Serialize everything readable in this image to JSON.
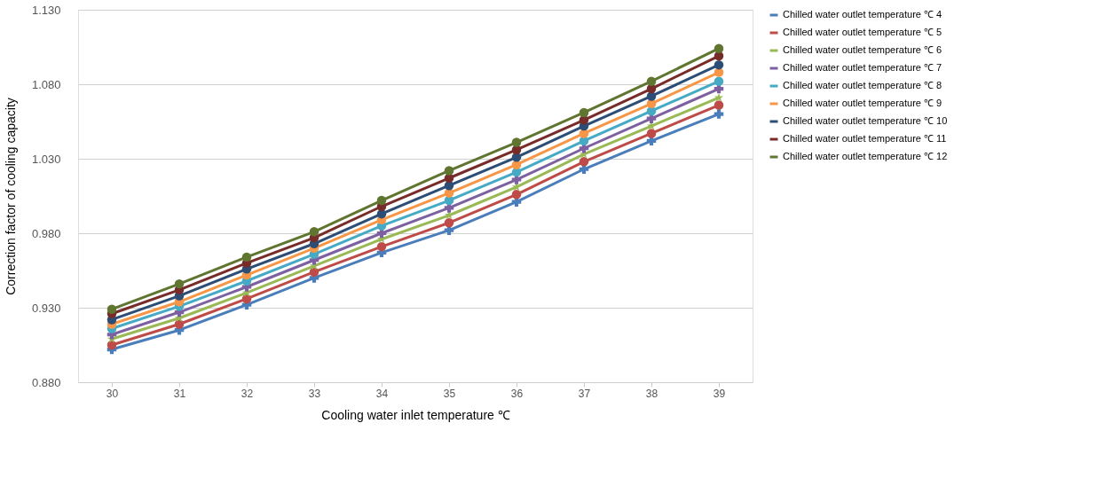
{
  "chart_data": {
    "type": "line",
    "xlabel": "Cooling water inlet temperature ℃",
    "ylabel": "Correction factor of cooling capacity",
    "categories": [
      "30",
      "31",
      "32",
      "33",
      "34",
      "35",
      "36",
      "37",
      "38",
      "39"
    ],
    "ylim": [
      0.88,
      1.13
    ],
    "yticks": [
      {
        "value": 0.88,
        "label": "0.880"
      },
      {
        "value": 0.93,
        "label": "0.930"
      },
      {
        "value": 0.98,
        "label": "0.980"
      },
      {
        "value": 1.03,
        "label": "1.030"
      },
      {
        "value": 1.08,
        "label": "1.080"
      },
      {
        "value": 1.13,
        "label": "1.130"
      }
    ],
    "grid": "y",
    "legend": "right",
    "line_style": "solid",
    "series": [
      {
        "name": "Chilled water outlet temperature ℃ 4",
        "color": "#4a7ebb",
        "marker": "cross",
        "values": [
          0.902,
          0.915,
          0.932,
          0.95,
          0.967,
          0.982,
          1.001,
          1.023,
          1.042,
          1.06
        ]
      },
      {
        "name": "Chilled water outlet temperature ℃ 5",
        "color": "#be4b48",
        "marker": "circle",
        "values": [
          0.905,
          0.919,
          0.936,
          0.954,
          0.971,
          0.987,
          1.006,
          1.028,
          1.047,
          1.066
        ]
      },
      {
        "name": "Chilled water outlet temperature ℃ 6",
        "color": "#98b954",
        "marker": "star",
        "values": [
          0.909,
          0.923,
          0.94,
          0.958,
          0.976,
          0.992,
          1.011,
          1.033,
          1.052,
          1.071
        ]
      },
      {
        "name": "Chilled water outlet temperature ℃ 7",
        "color": "#7d60a0",
        "marker": "cross",
        "values": [
          0.912,
          0.927,
          0.944,
          0.962,
          0.98,
          0.997,
          1.016,
          1.037,
          1.057,
          1.077
        ]
      },
      {
        "name": "Chilled water outlet temperature ℃ 8",
        "color": "#46aac5",
        "marker": "circle",
        "values": [
          0.916,
          0.931,
          0.948,
          0.966,
          0.985,
          1.002,
          1.021,
          1.042,
          1.062,
          1.082
        ]
      },
      {
        "name": "Chilled water outlet temperature ℃ 9",
        "color": "#f79646",
        "marker": "circle",
        "values": [
          0.919,
          0.934,
          0.952,
          0.97,
          0.989,
          1.007,
          1.026,
          1.047,
          1.067,
          1.088
        ]
      },
      {
        "name": "Chilled water outlet temperature ℃ 10",
        "color": "#2c4d75",
        "marker": "circle",
        "values": [
          0.922,
          0.938,
          0.956,
          0.973,
          0.993,
          1.012,
          1.031,
          1.052,
          1.072,
          1.093
        ]
      },
      {
        "name": "Chilled water outlet temperature ℃ 11",
        "color": "#772c2a",
        "marker": "circle",
        "values": [
          0.926,
          0.942,
          0.96,
          0.977,
          0.998,
          1.017,
          1.036,
          1.056,
          1.077,
          1.099
        ]
      },
      {
        "name": "Chilled water outlet temperature ℃ 12",
        "color": "#5f7530",
        "marker": "circle",
        "values": [
          0.929,
          0.946,
          0.964,
          0.981,
          1.002,
          1.022,
          1.041,
          1.061,
          1.082,
          1.104
        ]
      }
    ]
  }
}
